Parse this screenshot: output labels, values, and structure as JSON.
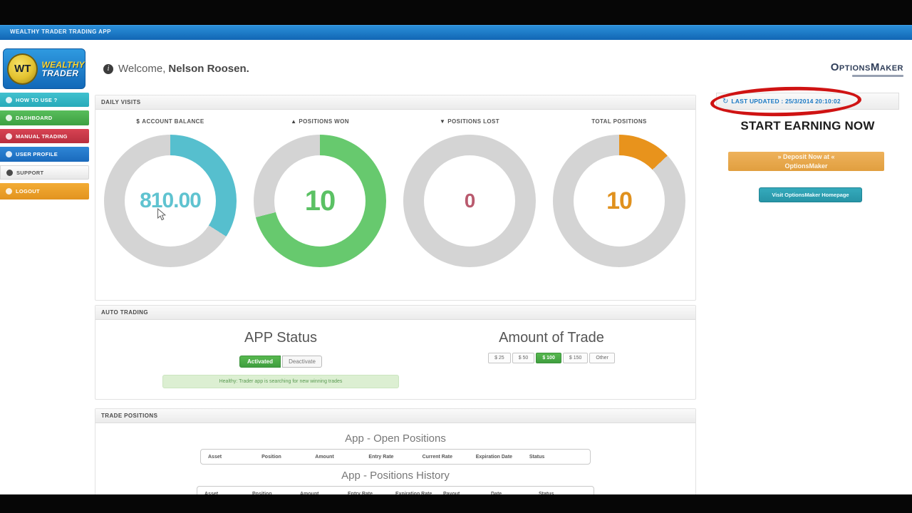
{
  "titlebar": {
    "title": "WEALTHY TRADER TRADING APP"
  },
  "sidebar": {
    "logo_monogram": "WT",
    "logo_line1": "WEALTHY",
    "logo_line2": "TRADER",
    "items": [
      {
        "label": "HOW TO USE ?",
        "color": "#2fb3c4"
      },
      {
        "label": "DASHBOARD",
        "color": "#47ac4b"
      },
      {
        "label": "MANUAL TRADING",
        "color": "#c93848"
      },
      {
        "label": "USER PROFILE",
        "color": "#2177c9"
      },
      {
        "label": "SUPPORT",
        "color": "#f2f2f2"
      },
      {
        "label": "LOGOUT",
        "color": "#eb9e2a"
      }
    ]
  },
  "header": {
    "welcome": "Welcome,",
    "user_name": "Nelson Roosen.",
    "brand": "OptionsMaker"
  },
  "daily_visits": {
    "section_title": "DAILY VISITS",
    "track_color": "#d4d4d4",
    "donuts": [
      {
        "label": "ACCOUNT BALANCE",
        "icon": "dollar-icon",
        "glyph": "$",
        "value": "810.00",
        "percent": 34,
        "color": "#56bfce",
        "value_color": "#5fc3d0"
      },
      {
        "label": "POSITIONS WON",
        "icon": "up-arrow-icon",
        "glyph": "▲",
        "value": "10",
        "percent": 71,
        "color": "#67c96e",
        "value_color": "#5bc164"
      },
      {
        "label": "POSITIONS LOST",
        "icon": "down-arrow-icon",
        "glyph": "▼",
        "value": "0",
        "percent": 0,
        "color": "#c2566b",
        "value_color": "#b95a6e"
      },
      {
        "label": "TOTAL POSITIONS",
        "icon": "none",
        "glyph": "",
        "value": "10",
        "percent": 13,
        "color": "#e8931c",
        "value_color": "#e0911e"
      }
    ]
  },
  "auto_trading": {
    "section_title": "AUTO TRADING",
    "app_status_title": "APP Status",
    "activated_label": "Activated",
    "deactivate_label": "Deactivate",
    "status_notice": "Healthy: Trader app is searching for new winning trades",
    "amount_title": "Amount of Trade",
    "amount_options": [
      "$ 25",
      "$ 50",
      "$ 100",
      "$ 150",
      "Other"
    ],
    "amount_selected": "$ 100"
  },
  "trade_positions": {
    "section_title": "TRADE POSITIONS",
    "open_title": "App - Open Positions",
    "open_columns": [
      "Asset",
      "Position",
      "Amount",
      "Entry Rate",
      "Current Rate",
      "Expiration Date",
      "Status"
    ],
    "history_title": "App - Positions History",
    "history_columns": [
      "Asset",
      "Position",
      "Amount",
      "Entry Rate",
      "Expiration Rate",
      "Payout",
      "Date",
      "Status"
    ]
  },
  "right_panel": {
    "last_updated": "LAST UPDATED : 25/3/2014 20:10:02",
    "start_earning": "START EARNING NOW",
    "deposit_line1": "» Deposit Now at «",
    "deposit_line2": "OptionsMaker",
    "homepage_button": "Visit OptionsMaker Homepage"
  },
  "colors": {
    "titlebar_blue": "#1669b6",
    "accent_teal": "#56bfce",
    "accent_green": "#67c96e",
    "accent_orange": "#e8931c",
    "accent_red_muted": "#b95a6e",
    "last_updated_blue": "#1a79c4",
    "circle_red": "#cf1313"
  }
}
